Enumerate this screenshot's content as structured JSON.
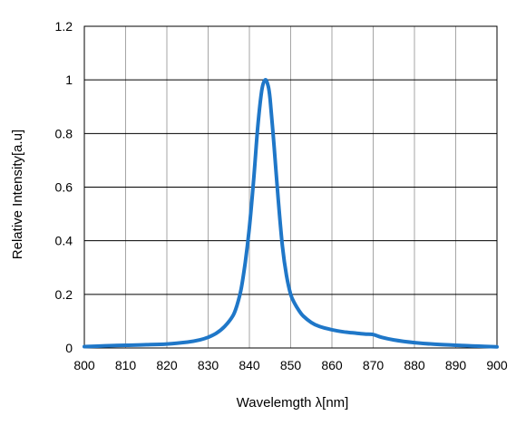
{
  "chart_data": {
    "type": "line",
    "title": "",
    "xlabel": "Wavelemgth λ[nm]",
    "ylabel": "Relative  Intensity[a.u]",
    "xlim": [
      800,
      900
    ],
    "ylim": [
      0,
      1.2
    ],
    "xticks": [
      800,
      810,
      820,
      830,
      840,
      850,
      860,
      870,
      880,
      890,
      900
    ],
    "yticks": [
      0,
      0.2,
      0.4,
      0.6,
      0.8,
      1,
      1.2
    ],
    "grid": true,
    "series": [
      {
        "color": "#1f77c8",
        "x": [
          800,
          805,
          810,
          815,
          820,
          825,
          828,
          830,
          832,
          834,
          836,
          837,
          838,
          839,
          840,
          841,
          842,
          843,
          843.8,
          844.5,
          845,
          846,
          847,
          848,
          849,
          850,
          851,
          852,
          853,
          855,
          857,
          860,
          863,
          866,
          868,
          870,
          872,
          875,
          880,
          885,
          890,
          895,
          900
        ],
        "y": [
          0.005,
          0.008,
          0.01,
          0.012,
          0.015,
          0.022,
          0.03,
          0.04,
          0.055,
          0.08,
          0.12,
          0.16,
          0.22,
          0.32,
          0.45,
          0.62,
          0.82,
          0.96,
          1.0,
          0.98,
          0.93,
          0.75,
          0.55,
          0.38,
          0.27,
          0.2,
          0.165,
          0.14,
          0.12,
          0.095,
          0.08,
          0.068,
          0.06,
          0.055,
          0.052,
          0.05,
          0.04,
          0.03,
          0.02,
          0.014,
          0.01,
          0.007,
          0.004
        ]
      }
    ]
  }
}
